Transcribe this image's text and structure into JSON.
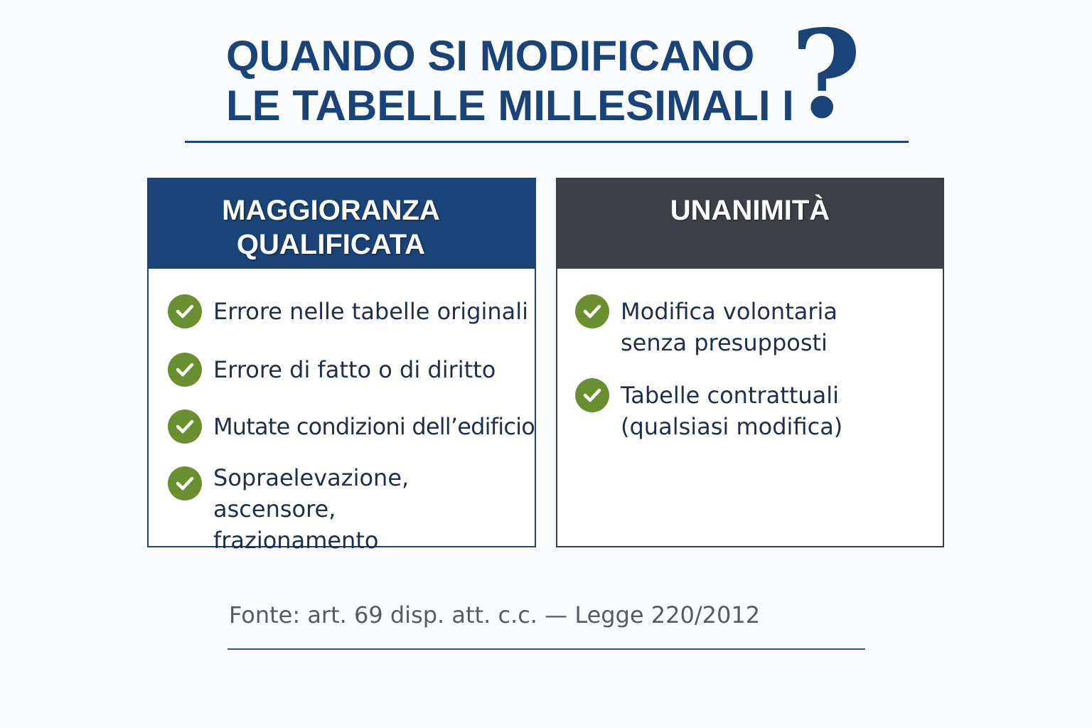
{
  "title": {
    "line1": "QUANDO SI MODIFICANO",
    "line2": "LE TABELLE MILLESIMALI I",
    "question_mark": "?"
  },
  "colors": {
    "blue": "#1a4378",
    "dark_gray": "#3d4046",
    "green": "#6a8f2e"
  },
  "columns": [
    {
      "header_line1": "MAGGIORANZA",
      "header_line2": "QUALIFICATA",
      "items": [
        {
          "icon": "check-circle-icon",
          "line1": "Errore nelle tabelle originali",
          "line2": ""
        },
        {
          "icon": "check-circle-icon",
          "line1": "Errore di fatto o di diritto",
          "line2": ""
        },
        {
          "icon": "check-circle-icon",
          "line1": "Mutate condizioni dell’edificio",
          "line2": ""
        },
        {
          "icon": "check-circle-icon",
          "line1": "Sopraelevazione, ascensore,",
          "line2": "frazionamento"
        }
      ]
    },
    {
      "header_line1": "UNANIMITÀ",
      "items": [
        {
          "icon": "check-circle-icon",
          "line1": "Modifica volontaria",
          "line2": "senza presupposti"
        },
        {
          "icon": "check-circle-icon",
          "line1": "Tabelle contrattuali",
          "line2": "(qualsiasi modifica)"
        }
      ]
    }
  ],
  "footer": "Fonte: art. 69 disp. att. c.c. — Legge 220/2012"
}
